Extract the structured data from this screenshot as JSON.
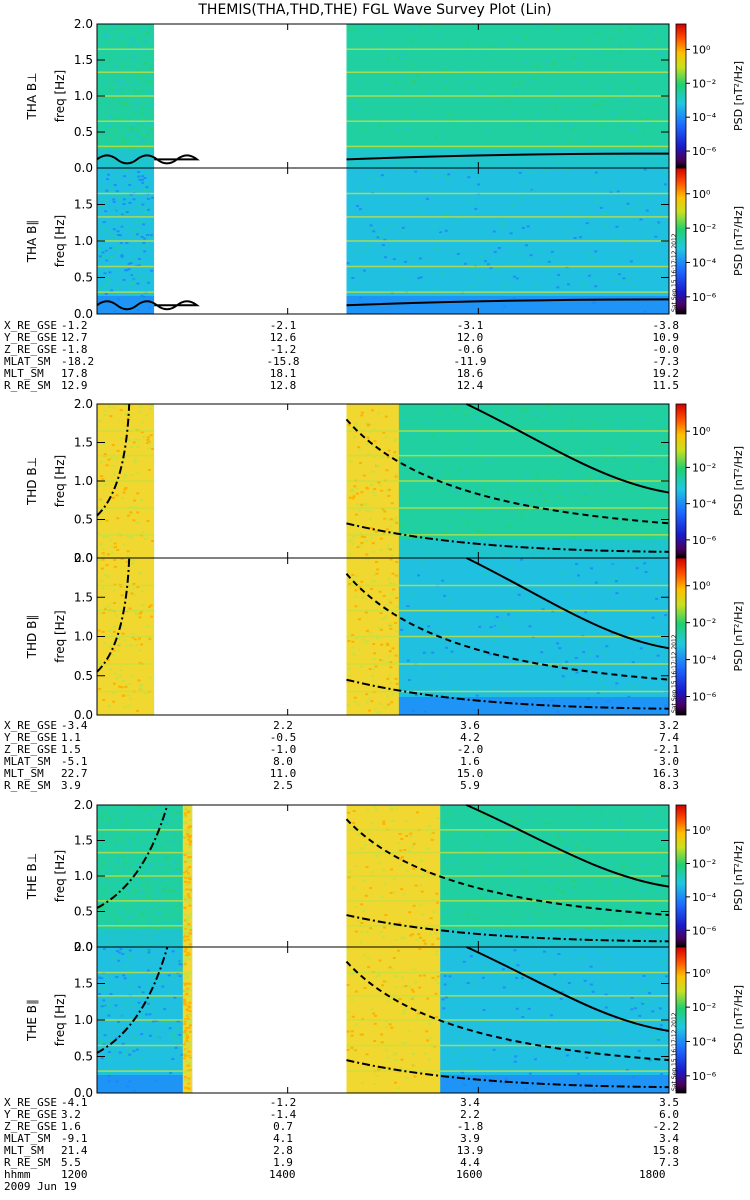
{
  "title": "THEMIS(THA,THD,THE) FGL Wave Survey Plot (Lin)",
  "stamp": "Sat Sep 15 16:17:12 2012",
  "colorbar": {
    "label": "PSD [nT²/Hz]",
    "ticks": [
      "10⁰",
      "10⁻²",
      "10⁻⁴",
      "10⁻⁶"
    ],
    "tick_exponents": [
      0,
      -2,
      -4,
      -6
    ]
  },
  "chart_data": {
    "type": "heatmap",
    "x_axis": {
      "label": "hhmm",
      "date": "2009 Jun 19",
      "ticks": [
        "1200",
        "1400",
        "1600",
        "1800"
      ],
      "range": [
        "1200",
        "1800"
      ]
    },
    "panels": [
      {
        "probe": "THA",
        "component": "B⊥",
        "ylabel_probe": "THA B⊥",
        "ylabel": "freq [Hz]",
        "ylim": [
          0,
          2.0
        ],
        "yticks": [
          "0.0",
          "0.5",
          "1.0",
          "1.5",
          "2.0"
        ],
        "data_gap": [
          "1236",
          "1437"
        ],
        "background_psd_exp": -3.5,
        "harmonic_lines_hz": [
          0.3,
          0.65,
          1.0,
          1.33,
          1.65
        ]
      },
      {
        "probe": "THA",
        "component": "B∥",
        "ylabel_probe": "THA B∥",
        "ylabel": "freq [Hz]",
        "ylim": [
          0,
          2.0
        ],
        "yticks": [
          "0.0",
          "0.5",
          "1.0",
          "1.5"
        ],
        "data_gap": [
          "1236",
          "1437"
        ],
        "background_psd_exp": -4.5,
        "harmonic_lines_hz": [
          0.3,
          0.65,
          1.0,
          1.33,
          1.65
        ]
      },
      {
        "probe": "THD",
        "component": "B⊥",
        "ylabel_probe": "THD B⊥",
        "ylabel": "freq [Hz]",
        "ylim": [
          0,
          2.0
        ],
        "yticks": [
          "0.0",
          "0.5",
          "1.0",
          "1.5",
          "2.0"
        ],
        "data_gap": [
          "1236",
          "1437"
        ],
        "background_psd_exp": -3.5,
        "harmonic_lines_hz": [
          0.3,
          0.65,
          1.0,
          1.33,
          1.65
        ]
      },
      {
        "probe": "THD",
        "component": "B∥",
        "ylabel_probe": "THD B∥",
        "ylabel": "freq [Hz]",
        "ylim": [
          0,
          2.0
        ],
        "yticks": [
          "0.0",
          "0.5",
          "1.0",
          "1.5",
          "2.0"
        ],
        "data_gap": [
          "1236",
          "1437"
        ],
        "background_psd_exp": -4.5,
        "harmonic_lines_hz": [
          0.3,
          0.65,
          1.0,
          1.33,
          1.65
        ]
      },
      {
        "probe": "THE",
        "component": "B⊥",
        "ylabel_probe": "THE B⊥",
        "ylabel": "freq [Hz]",
        "ylim": [
          0,
          2.0
        ],
        "yticks": [
          "0.0",
          "0.5",
          "1.0",
          "1.5",
          "2.0"
        ],
        "data_gap": [
          "1300",
          "1437"
        ],
        "background_psd_exp": -3.5,
        "harmonic_lines_hz": [
          0.3,
          0.65,
          1.0,
          1.33,
          1.65
        ]
      },
      {
        "probe": "THE",
        "component": "B∥",
        "ylabel_probe": "THE B∥",
        "ylabel": "freq [Hz]",
        "ylim": [
          0,
          2.0
        ],
        "yticks": [
          "0.0",
          "0.5",
          "1.0",
          "1.5",
          "2.0"
        ],
        "data_gap": [
          "1300",
          "1437"
        ],
        "background_psd_exp": -4.5,
        "harmonic_lines_hz": [
          0.3,
          0.65,
          1.0,
          1.33,
          1.65
        ]
      }
    ],
    "ephemeris": [
      {
        "probe": "THA",
        "rows": [
          {
            "name": "X_RE_GSE",
            "values": [
              "-1.2",
              "-2.1",
              "-3.1",
              "-3.8"
            ]
          },
          {
            "name": "Y_RE_GSE",
            "values": [
              "12.7",
              "12.6",
              "12.0",
              "10.9"
            ]
          },
          {
            "name": "Z_RE_GSE",
            "values": [
              "-1.8",
              "-1.2",
              "-0.6",
              "-0.0"
            ]
          },
          {
            "name": "MLAT_SM",
            "values": [
              "-18.2",
              "-15.8",
              "-11.9",
              "-7.3"
            ]
          },
          {
            "name": "MLT_SM",
            "values": [
              "17.8",
              "18.1",
              "18.6",
              "19.2"
            ]
          },
          {
            "name": "R_RE_SM",
            "values": [
              "12.9",
              "12.8",
              "12.4",
              "11.5"
            ]
          }
        ]
      },
      {
        "probe": "THD",
        "rows": [
          {
            "name": "X_RE_GSE",
            "values": [
              "-3.4",
              "2.2",
              "3.6",
              "3.2"
            ]
          },
          {
            "name": "Y_RE_GSE",
            "values": [
              "1.1",
              "-0.5",
              "4.2",
              "7.4"
            ]
          },
          {
            "name": "Z_RE_GSE",
            "values": [
              "1.5",
              "-1.0",
              "-2.0",
              "-2.1"
            ]
          },
          {
            "name": "MLAT_SM",
            "values": [
              "-5.1",
              "8.0",
              "1.6",
              "3.0"
            ]
          },
          {
            "name": "MLT_SM",
            "values": [
              "22.7",
              "11.0",
              "15.0",
              "16.3"
            ]
          },
          {
            "name": "R_RE_SM",
            "values": [
              "3.9",
              "2.5",
              "5.9",
              "8.3"
            ]
          }
        ]
      },
      {
        "probe": "THE",
        "rows": [
          {
            "name": "X_RE_GSE",
            "values": [
              "-4.1",
              "-1.2",
              "3.4",
              "3.5"
            ]
          },
          {
            "name": "Y_RE_GSE",
            "values": [
              "3.2",
              "-1.4",
              "2.2",
              "6.0"
            ]
          },
          {
            "name": "Z_RE_GSE",
            "values": [
              "1.6",
              "0.7",
              "-1.8",
              "-2.2"
            ]
          },
          {
            "name": "MLAT_SM",
            "values": [
              "-9.1",
              "4.1",
              "3.9",
              "3.4"
            ]
          },
          {
            "name": "MLT_SM",
            "values": [
              "21.4",
              "2.8",
              "13.9",
              "15.8"
            ]
          },
          {
            "name": "R_RE_SM",
            "values": [
              "5.5",
              "1.9",
              "4.4",
              "7.3"
            ]
          }
        ]
      }
    ]
  }
}
